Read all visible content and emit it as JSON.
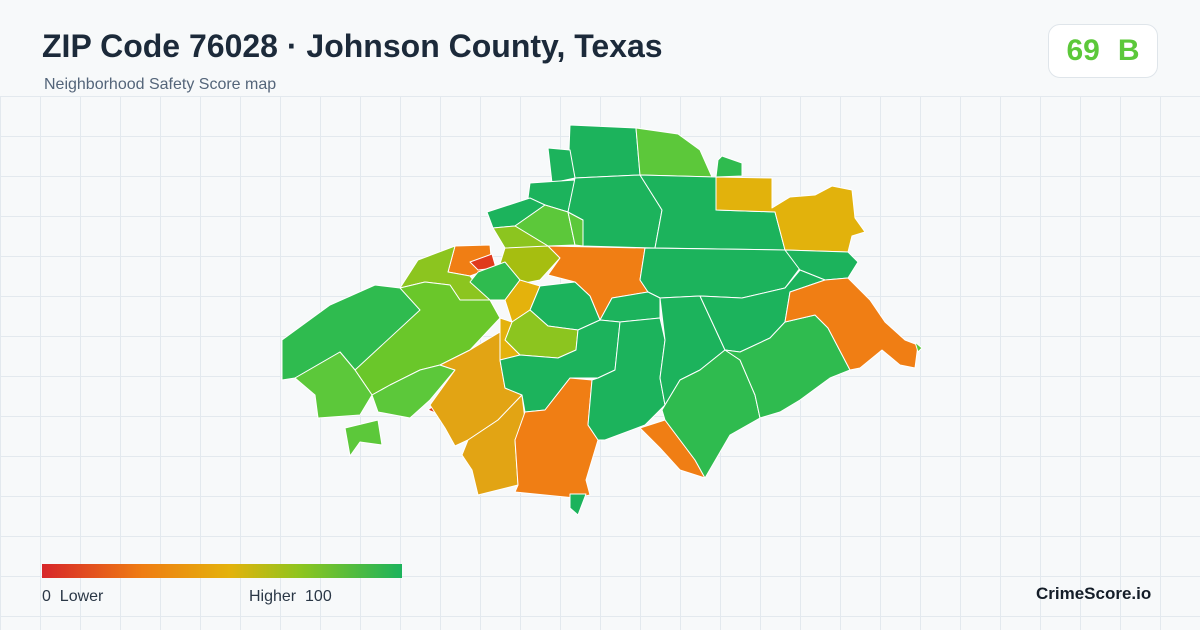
{
  "header": {
    "title": "ZIP Code 76028 · Johnson County, Texas",
    "subtitle": "Neighborhood Safety Score map"
  },
  "score": {
    "value": "69",
    "grade": "B",
    "color": "#5cc83a"
  },
  "legend": {
    "low_value": "0",
    "low_label": "Lower",
    "high_label": "Higher",
    "high_value": "100",
    "colors": [
      "#d7262a",
      "#ef7d12",
      "#e4b20c",
      "#8cc51f",
      "#1cb35c"
    ]
  },
  "brand": "CrimeScore.io",
  "palette": {
    "dark_green": "#1cb35c",
    "green": "#2fbb4f",
    "light_green": "#5cc83a",
    "yellow_green": "#8cc51f",
    "yellow": "#e4b20c",
    "amber": "#e2a414",
    "orange": "#f07e14",
    "red": "#e03a1c"
  }
}
